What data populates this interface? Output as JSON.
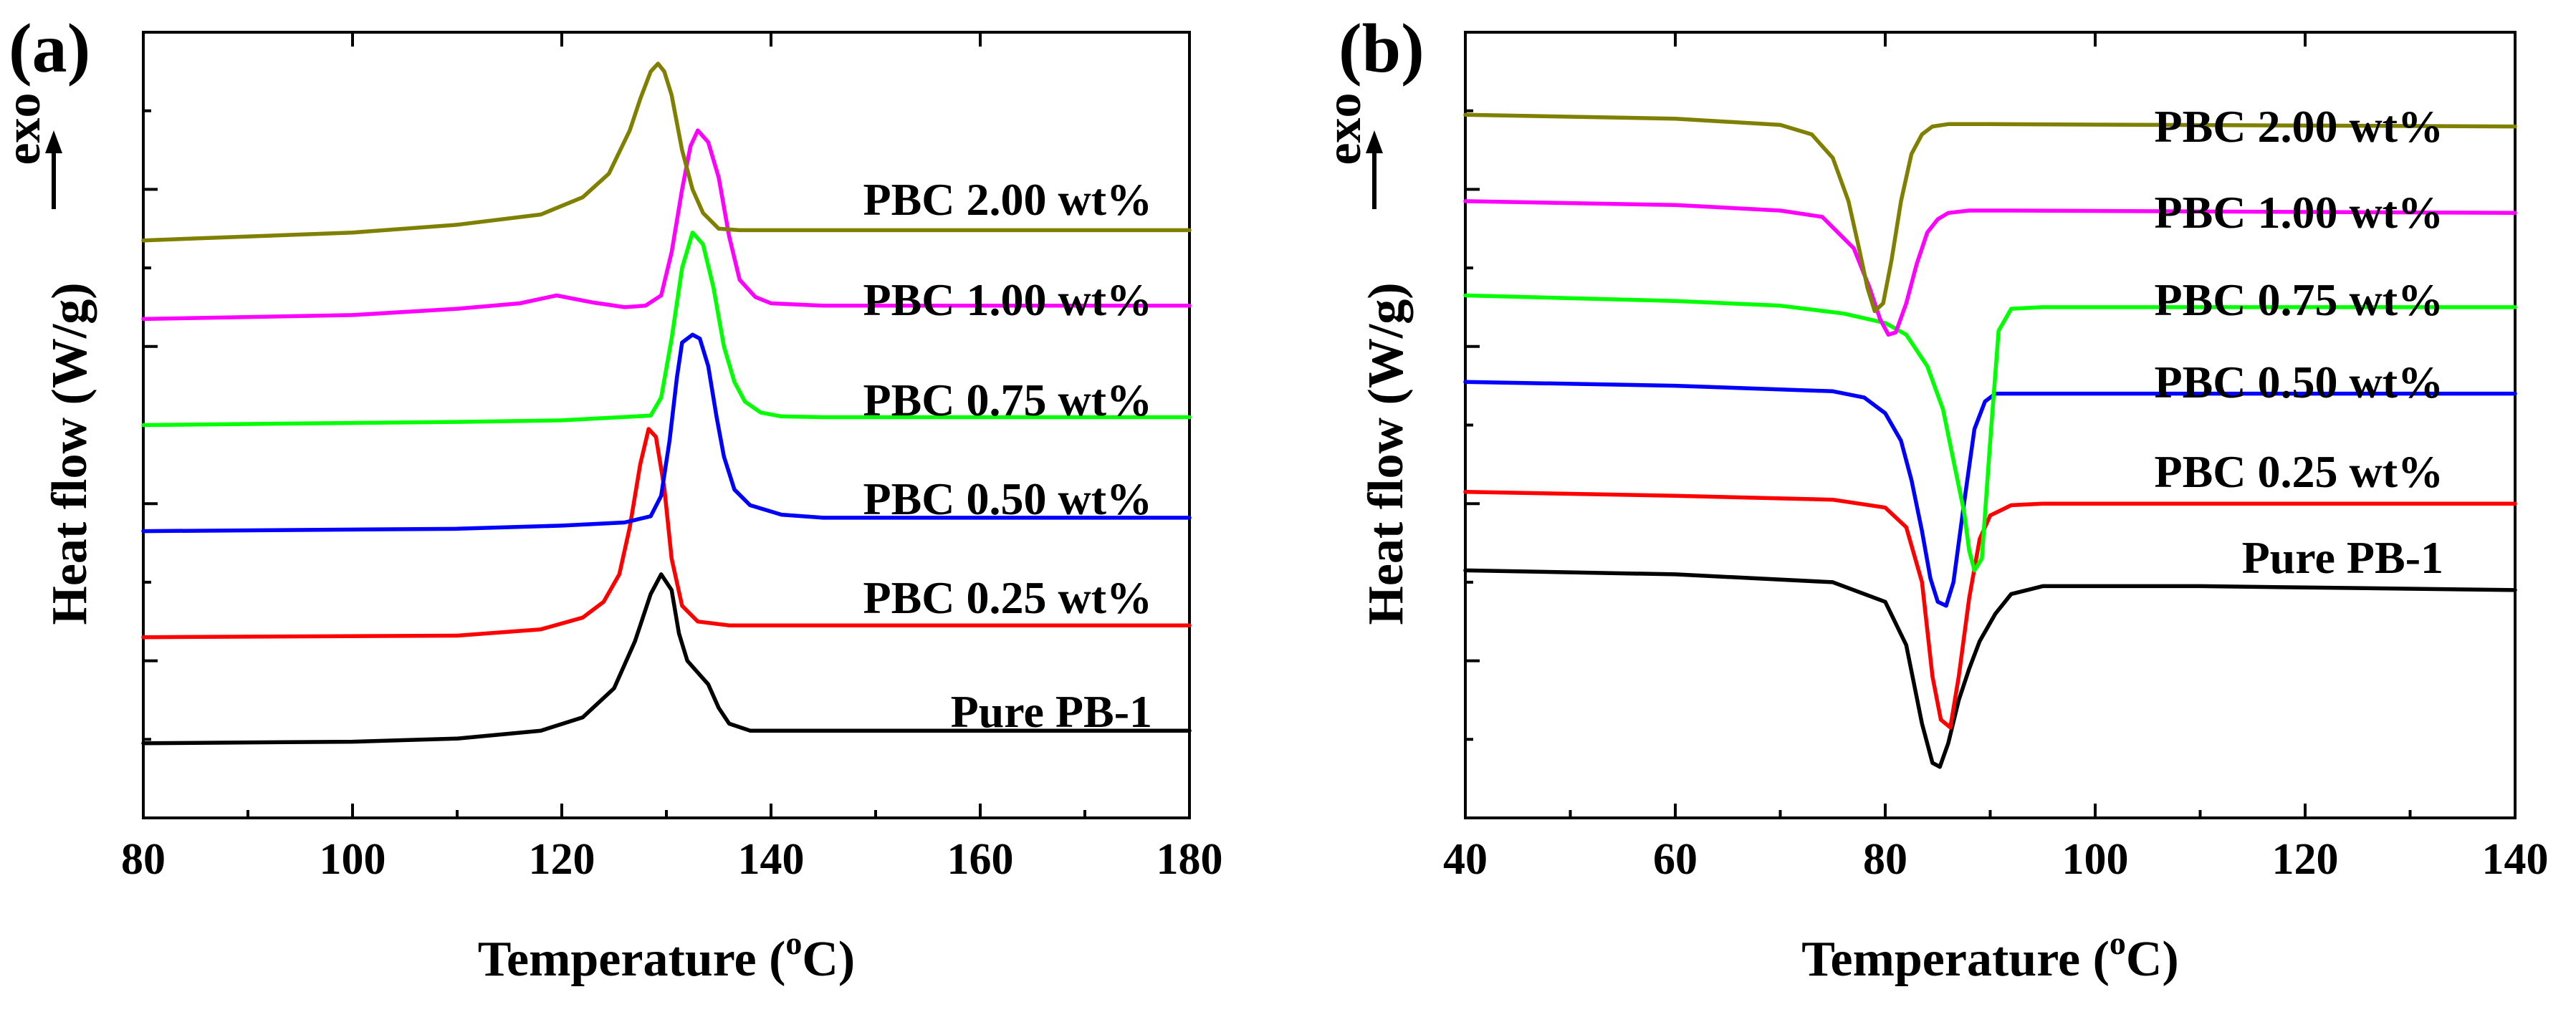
{
  "chart_data": [
    {
      "type": "line",
      "panel_label": "(a)",
      "xlabel": "Temperature (",
      "xlabel_sup": "o",
      "xlabel_tail": "C)",
      "ylabel": "Heat flow (W/g)",
      "direction_label": "exo",
      "direction_arrow": "up",
      "xlim": [
        80,
        180
      ],
      "ylim": [
        0,
        100
      ],
      "y_ticks_labeled": false,
      "grid": false,
      "legend_position": "inline-right",
      "xticks": [
        80,
        100,
        120,
        140,
        160,
        180
      ],
      "xtick_labels": [
        "80",
        "100",
        "120",
        "140",
        "160",
        "180"
      ],
      "series": [
        {
          "name": "Pure PB-1",
          "color": "#000000",
          "x": [
            80,
            100,
            110,
            118,
            122,
            125,
            127,
            128.5,
            129.5,
            130.5,
            131.2,
            132,
            133,
            134,
            135,
            136,
            138,
            145,
            160,
            180
          ],
          "y": [
            9.5,
            9.7,
            10.1,
            11.1,
            12.8,
            16.5,
            22.5,
            28.5,
            31.0,
            29.0,
            23.5,
            20.0,
            18.5,
            17.0,
            14.0,
            12.0,
            11.1,
            11.1,
            11.1,
            11.1
          ]
        },
        {
          "name": "PBC 0.25 wt%",
          "color": "#ff0000",
          "x": [
            80,
            110,
            118,
            122,
            124,
            125.5,
            126.5,
            127.5,
            128.3,
            129,
            129.8,
            130.5,
            131.5,
            133,
            136,
            145,
            180
          ],
          "y": [
            23.0,
            23.2,
            24.0,
            25.5,
            27.5,
            31.0,
            37.0,
            45.0,
            49.5,
            48.5,
            42.0,
            33.0,
            27.0,
            25.0,
            24.5,
            24.5,
            24.5
          ]
        },
        {
          "name": "PBC 0.50 wt%",
          "color": "#0000ff",
          "x": [
            80,
            110,
            120,
            126,
            128.5,
            129.5,
            130.3,
            131,
            131.5,
            132.5,
            133.2,
            134,
            134.8,
            135.5,
            136.5,
            138,
            141,
            145,
            160,
            180
          ],
          "y": [
            36.5,
            36.8,
            37.2,
            37.6,
            38.4,
            41.0,
            48.0,
            56.0,
            60.5,
            61.5,
            61.0,
            57.5,
            51.0,
            46.0,
            41.8,
            39.8,
            38.6,
            38.2,
            38.2,
            38.2
          ]
        },
        {
          "name": "PBC 0.75 wt%",
          "color": "#00ff00",
          "x": [
            80,
            110,
            120,
            128.5,
            129.5,
            130.5,
            131.5,
            132.5,
            133.5,
            134.5,
            135.5,
            136.5,
            137.5,
            139,
            141,
            145,
            160,
            180
          ],
          "y": [
            50.0,
            50.4,
            50.6,
            51.2,
            53.5,
            61.0,
            70.0,
            74.5,
            73.0,
            67.5,
            60.0,
            55.5,
            53.0,
            51.6,
            51.1,
            51.0,
            51.0,
            51.0
          ]
        },
        {
          "name": "PBC 1.00 wt%",
          "color": "#ff00ff",
          "x": [
            80,
            100,
            110,
            116,
            119.5,
            123,
            126,
            128,
            129.5,
            130.5,
            131.5,
            132.3,
            133,
            134,
            135,
            136,
            137,
            138.5,
            140,
            145,
            160,
            180
          ],
          "y": [
            63.5,
            64.0,
            64.8,
            65.5,
            66.5,
            65.6,
            65.0,
            65.2,
            66.5,
            72.0,
            80.0,
            85.5,
            87.5,
            86.0,
            81.5,
            74.0,
            68.5,
            66.3,
            65.5,
            65.2,
            65.2,
            65.2
          ]
        },
        {
          "name": "PBC 2.00 wt%",
          "color": "#808000",
          "x": [
            80,
            100,
            110,
            118,
            122,
            124.5,
            126.5,
            127.5,
            128.5,
            129.2,
            129.8,
            130.5,
            131.5,
            132.5,
            133.5,
            135,
            137,
            140,
            160,
            180
          ],
          "y": [
            73.5,
            74.5,
            75.5,
            76.8,
            79.0,
            82.0,
            87.5,
            91.5,
            95.0,
            96.0,
            95.0,
            92.0,
            85.0,
            80.0,
            77.0,
            75.0,
            74.8,
            74.8,
            74.8,
            74.8
          ]
        }
      ]
    },
    {
      "type": "line",
      "panel_label": "(b)",
      "xlabel": "Temperature (",
      "xlabel_sup": "o",
      "xlabel_tail": "C)",
      "ylabel": "Heat flow (W/g)",
      "direction_label": "exo",
      "direction_arrow": "up",
      "xlim": [
        40,
        140
      ],
      "ylim": [
        0,
        100
      ],
      "y_ticks_labeled": false,
      "grid": false,
      "legend_position": "inline-right",
      "xticks": [
        40,
        60,
        80,
        100,
        120,
        140
      ],
      "xtick_labels": [
        "40",
        "60",
        "80",
        "100",
        "120",
        "140"
      ],
      "series": [
        {
          "name": "Pure PB-1",
          "color": "#000000",
          "x": [
            40,
            60,
            75,
            80,
            82,
            83.5,
            84.5,
            85.2,
            86,
            87,
            88,
            89,
            90.5,
            92,
            95,
            110,
            140
          ],
          "y": [
            31.5,
            31.0,
            30.0,
            27.5,
            22.0,
            12.0,
            7.0,
            6.5,
            9.5,
            15.0,
            19.0,
            22.5,
            26.0,
            28.5,
            29.5,
            29.5,
            29.0
          ]
        },
        {
          "name": "PBC 0.25 wt%",
          "color": "#ff0000",
          "x": [
            40,
            60,
            75,
            80,
            82,
            83.5,
            84.5,
            85.3,
            86.2,
            87,
            88,
            89,
            90,
            92,
            95,
            110,
            140
          ],
          "y": [
            41.5,
            41.0,
            40.5,
            39.5,
            37.0,
            30.0,
            18.0,
            12.5,
            11.5,
            18.0,
            28.0,
            35.5,
            38.5,
            39.8,
            40.0,
            40.0,
            40.0
          ]
        },
        {
          "name": "PBC 0.50 wt%",
          "color": "#0000ff",
          "x": [
            40,
            60,
            75,
            78,
            80,
            81.5,
            82.5,
            83.5,
            84.3,
            85,
            85.8,
            86.5,
            87.5,
            88.5,
            89.5,
            90.5,
            92,
            100,
            140
          ],
          "y": [
            55.5,
            55.0,
            54.3,
            53.5,
            51.5,
            48.0,
            43.0,
            36.5,
            30.5,
            27.5,
            27.0,
            30.0,
            40.0,
            49.5,
            53.0,
            54.0,
            54.0,
            54.0,
            54.0
          ]
        },
        {
          "name": "PBC 0.75 wt%",
          "color": "#00ff00",
          "x": [
            40,
            60,
            70,
            76,
            80,
            82,
            84,
            85.5,
            86.5,
            87.5,
            88,
            88.5,
            89.2,
            90,
            90.8,
            92,
            95,
            120,
            140
          ],
          "y": [
            66.5,
            65.8,
            65.2,
            64.2,
            63.0,
            61.5,
            57.5,
            52.0,
            45.5,
            39.0,
            34.0,
            31.5,
            33.0,
            48.0,
            62.0,
            64.8,
            65.0,
            65.0,
            65.0
          ]
        },
        {
          "name": "PBC 1.00 wt%",
          "color": "#ff00ff",
          "x": [
            40,
            60,
            70,
            74,
            77,
            78.5,
            79.5,
            80.3,
            81,
            82,
            83,
            84,
            85,
            86,
            88,
            92,
            140
          ],
          "y": [
            78.5,
            78.0,
            77.3,
            76.5,
            72.5,
            67.5,
            63.5,
            61.5,
            61.8,
            65.5,
            70.5,
            74.5,
            76.2,
            77.0,
            77.3,
            77.3,
            77.0
          ]
        },
        {
          "name": "PBC 2.00 wt%",
          "color": "#808000",
          "x": [
            40,
            60,
            70,
            73,
            75,
            76.5,
            77.5,
            78.3,
            79,
            79.8,
            80.6,
            81.5,
            82.5,
            83.5,
            84.5,
            86,
            90,
            140
          ],
          "y": [
            89.5,
            89.0,
            88.2,
            87.0,
            84.0,
            78.5,
            72.5,
            67.5,
            64.5,
            65.5,
            71.0,
            78.5,
            84.5,
            87.0,
            88.0,
            88.3,
            88.3,
            88.0
          ]
        }
      ]
    }
  ]
}
